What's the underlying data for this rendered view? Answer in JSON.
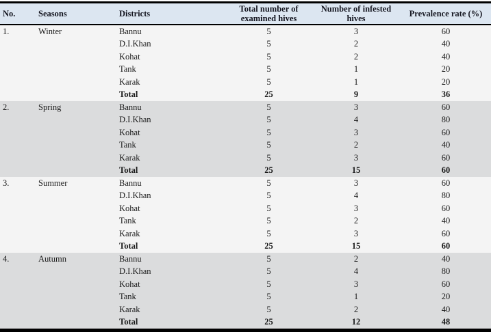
{
  "table": {
    "columns": [
      {
        "key": "no",
        "label": "No."
      },
      {
        "key": "season",
        "label": "Seasons"
      },
      {
        "key": "district",
        "label": "Districts"
      },
      {
        "key": "examined",
        "label": "Total number of examined hives"
      },
      {
        "key": "infested",
        "label": "Number of infested hives"
      },
      {
        "key": "prevalence",
        "label": "Prevalence rate (%)"
      }
    ],
    "sections": [
      {
        "no": "1.",
        "season": "Winter",
        "rows": [
          {
            "district": "Bannu",
            "examined": "5",
            "infested": "3",
            "prevalence": "60"
          },
          {
            "district": "D.I.Khan",
            "examined": "5",
            "infested": "2",
            "prevalence": "40"
          },
          {
            "district": "Kohat",
            "examined": "5",
            "infested": "2",
            "prevalence": "40"
          },
          {
            "district": "Tank",
            "examined": "5",
            "infested": "1",
            "prevalence": "20"
          },
          {
            "district": "Karak",
            "examined": "5",
            "infested": "1",
            "prevalence": "20"
          }
        ],
        "total": {
          "district": "Total",
          "examined": "25",
          "infested": "9",
          "prevalence": "36"
        }
      },
      {
        "no": "2.",
        "season": "Spring",
        "rows": [
          {
            "district": "Bannu",
            "examined": "5",
            "infested": "3",
            "prevalence": "60"
          },
          {
            "district": "D.I.Khan",
            "examined": "5",
            "infested": "4",
            "prevalence": "80"
          },
          {
            "district": "Kohat",
            "examined": "5",
            "infested": "3",
            "prevalence": "60"
          },
          {
            "district": "Tank",
            "examined": "5",
            "infested": "2",
            "prevalence": "40"
          },
          {
            "district": "Karak",
            "examined": "5",
            "infested": "3",
            "prevalence": "60"
          }
        ],
        "total": {
          "district": "Total",
          "examined": "25",
          "infested": "15",
          "prevalence": "60"
        }
      },
      {
        "no": "3.",
        "season": "Summer",
        "rows": [
          {
            "district": "Bannu",
            "examined": "5",
            "infested": "3",
            "prevalence": "60"
          },
          {
            "district": "D.I.Khan",
            "examined": "5",
            "infested": "4",
            "prevalence": "80"
          },
          {
            "district": "Kohat",
            "examined": "5",
            "infested": "3",
            "prevalence": "60"
          },
          {
            "district": "Tank",
            "examined": "5",
            "infested": "2",
            "prevalence": "40"
          },
          {
            "district": "Karak",
            "examined": "5",
            "infested": "3",
            "prevalence": "60"
          }
        ],
        "total": {
          "district": "Total",
          "examined": "25",
          "infested": "15",
          "prevalence": "60"
        }
      },
      {
        "no": "4.",
        "season": "Autumn",
        "rows": [
          {
            "district": "Bannu",
            "examined": "5",
            "infested": "2",
            "prevalence": "40"
          },
          {
            "district": "D.I.Khan",
            "examined": "5",
            "infested": "4",
            "prevalence": "80"
          },
          {
            "district": "Kohat",
            "examined": "5",
            "infested": "3",
            "prevalence": "60"
          },
          {
            "district": "Tank",
            "examined": "5",
            "infested": "1",
            "prevalence": "20"
          },
          {
            "district": "Karak",
            "examined": "5",
            "infested": "2",
            "prevalence": "40"
          }
        ],
        "total": {
          "district": "Total",
          "examined": "25",
          "infested": "12",
          "prevalence": "48"
        }
      }
    ],
    "colors": {
      "header_bg": "#dce6f1",
      "band_light": "#f4f4f4",
      "band_gray": "#dbdcdd",
      "border": "#000000",
      "header_text": "#14151f",
      "body_text": "#1a1a1a"
    }
  }
}
